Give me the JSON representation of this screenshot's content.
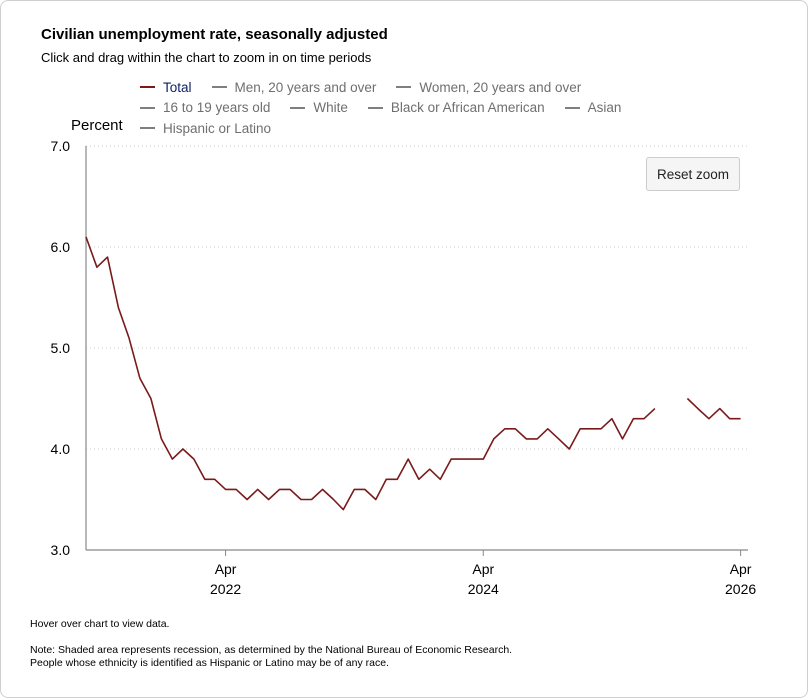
{
  "title": "Civilian unemployment rate, seasonally adjusted",
  "subtitle": "Click and drag within the chart to zoom in on time periods",
  "reset_zoom_label": "Reset zoom",
  "hover_note": "Hover over chart to view data.",
  "notes": [
    "Note: Shaded area represents recession, as determined by the National Bureau of Economic Research.",
    "People whose ethnicity is identified as Hispanic or Latino may be of any race."
  ],
  "colors": {
    "total_series": "#7a1a1a",
    "inactive_series": "#7f7f7f",
    "active_legend_text": "#0b1f66"
  },
  "legend": [
    {
      "label": "Total",
      "active": true
    },
    {
      "label": "Men, 20 years and over",
      "active": false
    },
    {
      "label": "Women, 20 years and over",
      "active": false
    },
    {
      "label": "16 to 19 years old",
      "active": false
    },
    {
      "label": "White",
      "active": false
    },
    {
      "label": "Black or African American",
      "active": false
    },
    {
      "label": "Asian",
      "active": false
    },
    {
      "label": "Hispanic or Latino",
      "active": false
    }
  ],
  "chart_data": {
    "type": "line",
    "ylabel": "Percent",
    "ylim": [
      3.0,
      7.0
    ],
    "y_ticks": [
      "3.0",
      "4.0",
      "5.0",
      "6.0",
      "7.0"
    ],
    "x_ticks": [
      {
        "date": "2022-04",
        "month": "Apr",
        "year": "2022"
      },
      {
        "date": "2024-04",
        "month": "Apr",
        "year": "2024"
      },
      {
        "date": "2026-04",
        "month": "Apr",
        "year": "2026"
      }
    ],
    "grid": "horizontal dotted",
    "series": [
      {
        "name": "Total",
        "x_start": "2021-03",
        "values": [
          6.1,
          5.8,
          5.9,
          5.4,
          5.1,
          4.7,
          4.5,
          4.1,
          3.9,
          4.0,
          3.9,
          3.7,
          3.7,
          3.6,
          3.6,
          3.5,
          3.6,
          3.5,
          3.6,
          3.6,
          3.5,
          3.5,
          3.6,
          3.5,
          3.4,
          3.6,
          3.6,
          3.5,
          3.7,
          3.7,
          3.9,
          3.7,
          3.8,
          3.7,
          3.9,
          3.9,
          3.9,
          3.9,
          4.1,
          4.2,
          4.2,
          4.1,
          4.1,
          4.2,
          4.1,
          4.0,
          4.2,
          4.2,
          4.2,
          4.3,
          4.1,
          4.3,
          4.3,
          4.4,
          null,
          null,
          4.5,
          4.4,
          4.3,
          4.4,
          4.3,
          4.3
        ]
      }
    ]
  }
}
